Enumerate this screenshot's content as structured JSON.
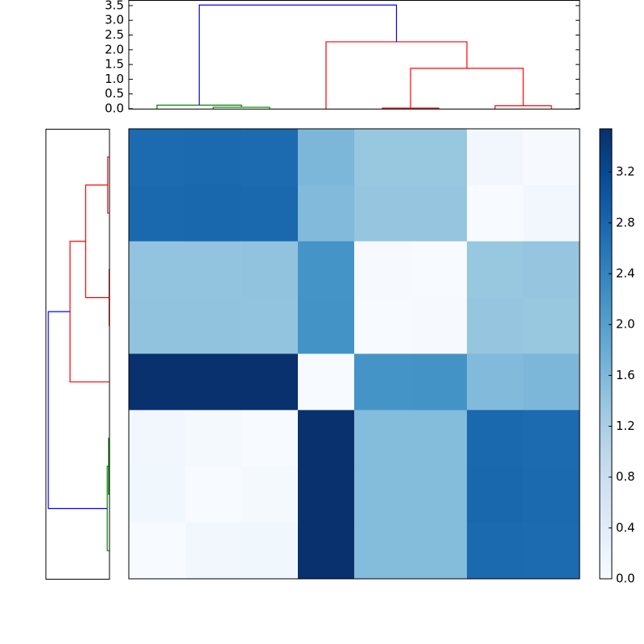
{
  "chart_data": [
    {
      "type": "dendrogram",
      "orientation": "top",
      "merges": [
        {
          "left": 4,
          "right": 5,
          "height": 0.02,
          "color": "#ff0000"
        },
        {
          "left": 1,
          "right": 2,
          "height": 0.05,
          "color": "#008000"
        },
        {
          "left": 6,
          "right": 7,
          "height": 0.1,
          "color": "#ff0000"
        },
        {
          "left": 0,
          "right": 9,
          "height": 0.12,
          "color": "#008000"
        },
        {
          "left": 8,
          "right": 10,
          "height": 1.37,
          "color": "#ff0000"
        },
        {
          "left": 3,
          "right": 12,
          "height": 2.27,
          "color": "#ff0000"
        },
        {
          "left": 11,
          "right": 13,
          "height": 3.52,
          "color": "#0000ff"
        }
      ],
      "ylim": [
        0,
        3.69
      ],
      "yticks": [
        {
          "value": 0,
          "label": "0.0"
        },
        0.5,
        {
          "value": 1,
          "label": "1.0"
        },
        1.5,
        {
          "value": 2,
          "label": "2.0"
        },
        2.5,
        {
          "value": 3,
          "label": "3.0"
        },
        3.5
      ]
    },
    {
      "type": "dendrogram",
      "orientation": "left",
      "merges": [
        {
          "left": 2,
          "right": 3,
          "height": 0.02,
          "color": "#ff0000"
        },
        {
          "left": 5,
          "right": 6,
          "height": 0.05,
          "color": "#008000"
        },
        {
          "left": 0,
          "right": 1,
          "height": 0.1,
          "color": "#ff0000"
        },
        {
          "left": 9,
          "right": 7,
          "height": 0.13,
          "color": "#008000"
        },
        {
          "left": 10,
          "right": 8,
          "height": 1.37,
          "color": "#ff0000"
        },
        {
          "left": 12,
          "right": 4,
          "height": 2.27,
          "color": "#ff0000"
        },
        {
          "left": 13,
          "right": 11,
          "height": 3.52,
          "color": "#0000ff"
        }
      ],
      "xlim": [
        3.66,
        0
      ]
    },
    {
      "type": "heatmap",
      "colormap": "Blues",
      "clim": [
        0,
        3.54
      ],
      "values": [
        [
          2.74,
          2.76,
          2.74,
          1.62,
          1.38,
          1.38,
          0.1,
          0.02
        ],
        [
          2.78,
          2.8,
          2.78,
          1.58,
          1.4,
          1.4,
          0.0,
          0.1
        ],
        [
          1.42,
          1.42,
          1.44,
          2.18,
          0.02,
          0.0,
          1.38,
          1.4
        ],
        [
          1.44,
          1.44,
          1.42,
          2.2,
          0.0,
          0.02,
          1.4,
          1.38
        ],
        [
          3.52,
          3.52,
          3.52,
          0.0,
          2.18,
          2.2,
          1.58,
          1.62
        ],
        [
          0.1,
          0.05,
          0.0,
          3.52,
          1.55,
          1.55,
          2.78,
          2.74
        ],
        [
          0.12,
          0.0,
          0.05,
          3.52,
          1.55,
          1.55,
          2.8,
          2.76
        ],
        [
          0.0,
          0.1,
          0.12,
          3.52,
          1.55,
          1.55,
          2.76,
          2.74
        ]
      ],
      "colorbar_ticks": [
        {
          "value": 0,
          "label": "0.0"
        },
        0.4,
        0.8,
        1.2,
        1.6,
        {
          "value": 2,
          "label": "2.0"
        },
        2.4,
        2.8,
        3.2
      ]
    }
  ]
}
